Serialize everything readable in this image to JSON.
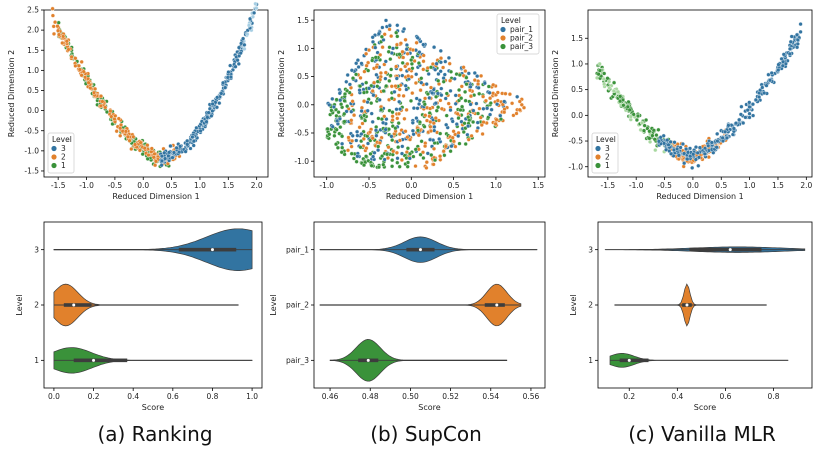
{
  "captions": [
    "(a) Ranking",
    "(b) SupCon",
    "(c) Vanilla MLR"
  ],
  "colors": {
    "blue": "#3274a1",
    "orange": "#e1812c",
    "green": "#3a923a",
    "light": "#a6cee3"
  },
  "chart_data": [
    {
      "type": "scatter",
      "panel": "a-scatter",
      "xlabel": "Reduced Dimension 1",
      "ylabel": "Reduced Dimension 2",
      "xlim": [
        -1.75,
        2.2
      ],
      "ylim": [
        -1.65,
        2.5
      ],
      "xticks": [
        -1.5,
        -1.0,
        -0.5,
        0.0,
        0.5,
        1.0,
        1.5,
        2.0
      ],
      "xtick_labels": [
        "-1.5",
        "-1.0",
        "-0.5",
        "0.0",
        "0.5",
        "1.0",
        "1.5",
        "2.0"
      ],
      "yticks": [
        -1.5,
        -1.0,
        -0.5,
        0.0,
        0.5,
        1.0,
        1.5,
        2.0,
        2.5
      ],
      "ytick_labels": [
        "-1.5",
        "-1.0",
        "-0.5",
        "0.0",
        "0.5",
        "1.0",
        "1.5",
        "2.0",
        "2.5"
      ],
      "legend": {
        "title": "Level",
        "entries": [
          "3",
          "2",
          "1"
        ],
        "colors": [
          "#3274a1",
          "#e1812c",
          "#3a923a"
        ],
        "loc": "lower-left"
      },
      "shape": "parabola",
      "vertex": [
        0.35,
        -1.2
      ],
      "series": [
        {
          "name": "3",
          "x_range": [
            0.3,
            2.0
          ]
        },
        {
          "name": "2",
          "x_range": [
            -1.6,
            0.7
          ]
        },
        {
          "name": "1",
          "x_range": [
            -1.5,
            0.5
          ]
        }
      ]
    },
    {
      "type": "scatter",
      "panel": "b-scatter",
      "xlabel": "Reduced Dimension 1",
      "ylabel": "Reduced Dimension 2",
      "xlim": [
        -1.15,
        1.58
      ],
      "ylim": [
        -1.28,
        1.68
      ],
      "xticks": [
        -1.0,
        -0.5,
        0.0,
        0.5,
        1.0,
        1.5
      ],
      "xtick_labels": [
        "-1.0",
        "-0.5",
        "0.0",
        "0.5",
        "1.0",
        "1.5"
      ],
      "yticks": [
        -1.0,
        -0.5,
        0.0,
        0.5,
        1.0,
        1.5
      ],
      "ytick_labels": [
        "-1.0",
        "-0.5",
        "0.0",
        "0.5",
        "1.0",
        "1.5"
      ],
      "legend": {
        "title": "Level",
        "entries": [
          "pair_1",
          "pair_2",
          "pair_3"
        ],
        "colors": [
          "#3274a1",
          "#e1812c",
          "#3a923a"
        ],
        "loc": "upper-right"
      },
      "shape": "triangle",
      "vertices": [
        [
          -1.0,
          0.0
        ],
        [
          -0.3,
          1.55
        ],
        [
          1.42,
          0.0
        ]
      ],
      "series": [
        {
          "name": "pair_1",
          "region": "top"
        },
        {
          "name": "pair_2",
          "region": "right"
        },
        {
          "name": "pair_3",
          "region": "left-bottom"
        }
      ]
    },
    {
      "type": "scatter",
      "panel": "c-scatter",
      "xlabel": "Reduced Dimension 1",
      "ylabel": "Reduced Dimension 2",
      "xlim": [
        -1.85,
        2.1
      ],
      "ylim": [
        -1.2,
        2.05
      ],
      "xticks": [
        -1.5,
        -1.0,
        -0.5,
        0.0,
        0.5,
        1.0,
        1.5,
        2.0
      ],
      "xtick_labels": [
        "-1.5",
        "-1.0",
        "-0.5",
        "0.0",
        "0.5",
        "1.0",
        "1.5",
        "2.0"
      ],
      "yticks": [
        -1.0,
        -0.5,
        0.0,
        0.5,
        1.0,
        1.5
      ],
      "ytick_labels": [
        "-1.0",
        "-0.5",
        "0.0",
        "0.5",
        "1.0",
        "1.5"
      ],
      "legend": {
        "title": "Level",
        "entries": [
          "3",
          "2",
          "1"
        ],
        "colors": [
          "#3274a1",
          "#e1812c",
          "#3a923a"
        ],
        "loc": "lower-left"
      },
      "shape": "parabola",
      "vertex": [
        0.0,
        -0.8
      ],
      "series": [
        {
          "name": "3",
          "x_range": [
            -0.6,
            1.9
          ]
        },
        {
          "name": "2",
          "x_range": [
            -0.4,
            0.6
          ]
        },
        {
          "name": "1",
          "x_range": [
            -1.7,
            -0.2
          ]
        }
      ]
    },
    {
      "type": "violin",
      "panel": "a-violin",
      "xlabel": "Score",
      "ylabel": "Level",
      "xlim": [
        -0.05,
        1.05
      ],
      "xticks": [
        0.0,
        0.2,
        0.4,
        0.6,
        0.8,
        1.0
      ],
      "xtick_labels": [
        "0.0",
        "0.2",
        "0.4",
        "0.6",
        "0.8",
        "1.0"
      ],
      "categories": [
        "3",
        "2",
        "1"
      ],
      "violins": [
        {
          "label": "3",
          "color": "#3274a1",
          "min": 0.0,
          "max": 1.0,
          "q1": 0.63,
          "median": 0.8,
          "q3": 0.92,
          "peak": 0.93,
          "width": 0.9,
          "spread": 0.16
        },
        {
          "label": "2",
          "color": "#e1812c",
          "min": 0.0,
          "max": 0.93,
          "q1": 0.05,
          "median": 0.1,
          "q3": 0.19,
          "peak": 0.06,
          "width": 0.9,
          "spread": 0.06
        },
        {
          "label": "1",
          "color": "#3a923a",
          "min": 0.0,
          "max": 1.0,
          "q1": 0.1,
          "median": 0.2,
          "q3": 0.37,
          "peak": 0.09,
          "width": 0.55,
          "spread": 0.1
        }
      ]
    },
    {
      "type": "violin",
      "panel": "b-violin",
      "xlabel": "Score",
      "ylabel": "Level",
      "xlim": [
        0.452,
        0.567
      ],
      "xticks": [
        0.46,
        0.48,
        0.5,
        0.52,
        0.54,
        0.56
      ],
      "xtick_labels": [
        "0.46",
        "0.48",
        "0.50",
        "0.52",
        "0.54",
        "0.56"
      ],
      "categories": [
        "pair_1",
        "pair_2",
        "pair_3"
      ],
      "violins": [
        {
          "label": "pair_1",
          "color": "#3274a1",
          "min": 0.455,
          "max": 0.563,
          "q1": 0.498,
          "median": 0.505,
          "q3": 0.512,
          "peak": 0.505,
          "width": 0.55,
          "spread": 0.008
        },
        {
          "label": "pair_2",
          "color": "#e1812c",
          "min": 0.455,
          "max": 0.555,
          "q1": 0.537,
          "median": 0.543,
          "q3": 0.547,
          "peak": 0.543,
          "width": 0.9,
          "spread": 0.005
        },
        {
          "label": "pair_3",
          "color": "#3a923a",
          "min": 0.46,
          "max": 0.548,
          "q1": 0.474,
          "median": 0.479,
          "q3": 0.484,
          "peak": 0.479,
          "width": 0.9,
          "spread": 0.006
        }
      ]
    },
    {
      "type": "violin",
      "panel": "c-violin",
      "xlabel": "Score",
      "ylabel": "Level",
      "xlim": [
        0.07,
        0.96
      ],
      "xticks": [
        0.2,
        0.4,
        0.6,
        0.8
      ],
      "xtick_labels": [
        "0.2",
        "0.4",
        "0.6",
        "0.8"
      ],
      "categories": [
        "3",
        "2",
        "1"
      ],
      "violins": [
        {
          "label": "3",
          "color": "#3274a1",
          "min": 0.1,
          "max": 0.93,
          "q1": 0.45,
          "median": 0.62,
          "q3": 0.75,
          "peak": 0.65,
          "width": 0.12,
          "spread": 0.18
        },
        {
          "label": "2",
          "color": "#e1812c",
          "min": 0.14,
          "max": 0.77,
          "q1": 0.42,
          "median": 0.44,
          "q3": 0.46,
          "peak": 0.44,
          "width": 0.9,
          "spread": 0.012
        },
        {
          "label": "1",
          "color": "#3a923a",
          "min": 0.12,
          "max": 0.86,
          "q1": 0.16,
          "median": 0.2,
          "q3": 0.28,
          "peak": 0.17,
          "width": 0.3,
          "spread": 0.05
        }
      ]
    }
  ]
}
